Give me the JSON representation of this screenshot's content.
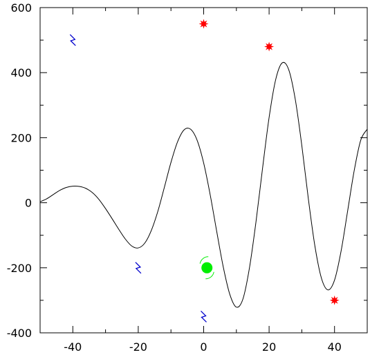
{
  "chart_data": {
    "type": "line",
    "xlim": [
      -50,
      50
    ],
    "ylim": [
      -400,
      600
    ],
    "x_ticks": [
      -40,
      -20,
      0,
      20,
      40
    ],
    "x_tick_labels": [
      "-40",
      "-20",
      "0",
      "20",
      "40"
    ],
    "y_ticks": [
      -400,
      -200,
      0,
      200,
      400,
      600
    ],
    "y_tick_labels": [
      "-400",
      "-200",
      "0",
      "200",
      "400",
      "600"
    ],
    "grid": false,
    "series": [
      {
        "x": [
          -50,
          -48,
          -46,
          -44,
          -42,
          -40,
          -38,
          -36,
          -34,
          -32,
          -30,
          -28,
          -26,
          -24,
          -22,
          -20,
          -18,
          -16,
          -14,
          -12,
          -10,
          -8,
          -6,
          -4,
          -2,
          0,
          2,
          4,
          6,
          8,
          10,
          12,
          14,
          16,
          18,
          20,
          22,
          24,
          26,
          28,
          30,
          32,
          34,
          36,
          38,
          40,
          42,
          44,
          46,
          48,
          50
        ],
        "y": [
          3,
          12,
          25,
          38,
          47,
          51,
          50,
          44,
          31,
          10,
          -18,
          -49,
          -81,
          -111,
          -133,
          -139,
          -124,
          -85,
          -26,
          48,
          124,
          187,
          224,
          226,
          192,
          122,
          24,
          -89,
          -198,
          -282,
          -321,
          -296,
          -200,
          -58,
          106,
          262,
          378,
          430,
          409,
          318,
          176,
          12,
          -133,
          -232,
          -268,
          -238,
          -149,
          -26,
          98,
          192,
          226
        ],
        "color": "#000000"
      }
    ],
    "markers": [
      {
        "symbol": "star",
        "color": "#ff0000",
        "points": [
          [
            0,
            550
          ],
          [
            20,
            480
          ],
          [
            40,
            -300
          ]
        ]
      },
      {
        "symbol": "lightning",
        "color": "#0000cc",
        "points": [
          [
            -40,
            500
          ],
          [
            -20,
            -200
          ],
          [
            0,
            -350
          ]
        ]
      },
      {
        "symbol": "disc-arcs",
        "color": "#00ee00",
        "points": [
          [
            1,
            -200
          ]
        ]
      }
    ]
  }
}
